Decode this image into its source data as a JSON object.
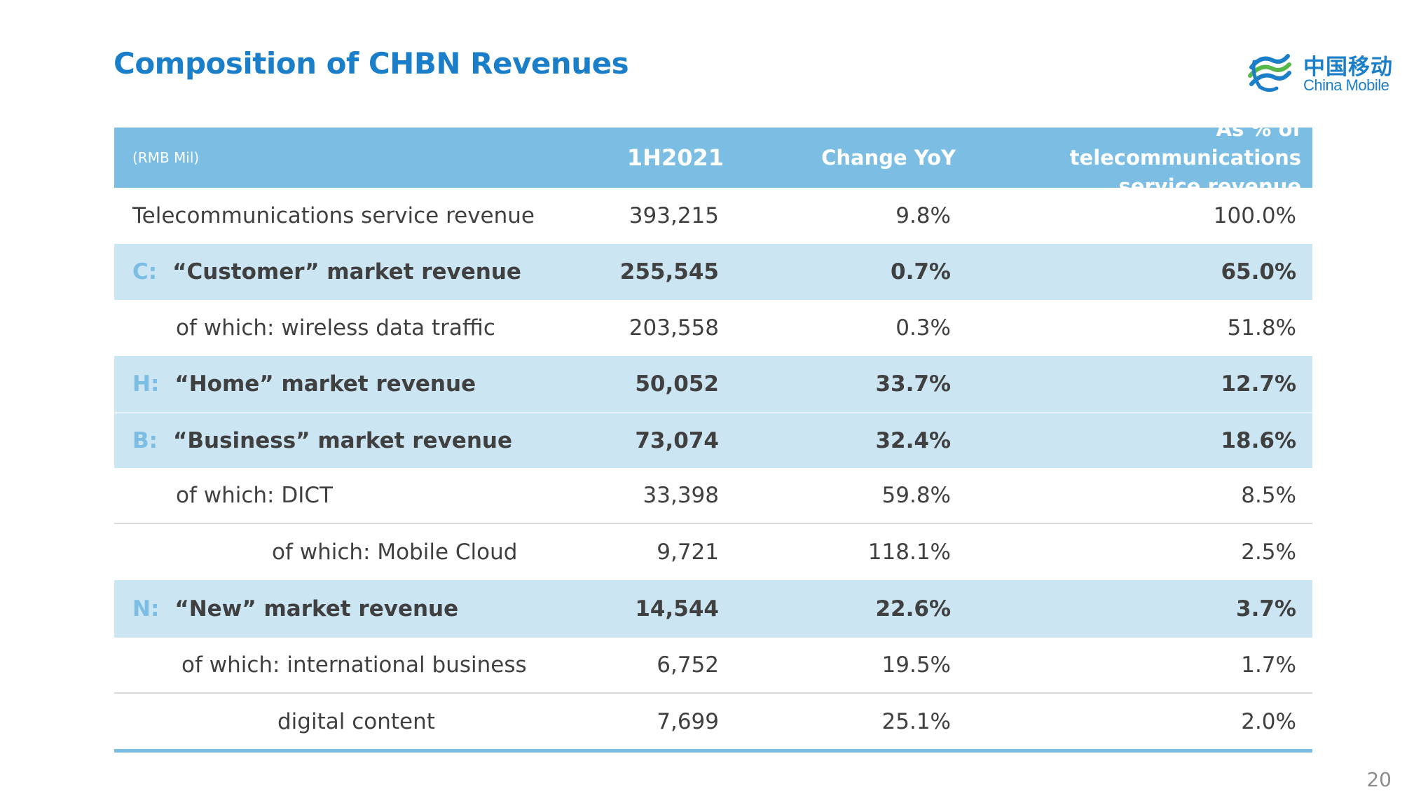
{
  "title": "Composition of CHBN Revenues",
  "logo": {
    "chinese": "中国移动",
    "english": "China Mobile"
  },
  "table": {
    "headers": {
      "unit": "(RMB Mil)",
      "period": "1H2021",
      "change": "Change YoY",
      "share": "As % of telecommunications service revenue"
    },
    "rows": [
      {
        "prefix": "",
        "label": "Telecommunications service revenue",
        "value": "393,215",
        "change": "9.8%",
        "share": "100.0%"
      },
      {
        "prefix": "C:",
        "label": "“Customer” market revenue",
        "value": "255,545",
        "change": "0.7%",
        "share": "65.0%"
      },
      {
        "prefix": "",
        "label": "of which: wireless data traffic",
        "value": "203,558",
        "change": "0.3%",
        "share": "51.8%"
      },
      {
        "prefix": "H:",
        "label": "“Home” market revenue",
        "value": "50,052",
        "change": "33.7%",
        "share": "12.7%"
      },
      {
        "prefix": "B:",
        "label": "“Business” market revenue",
        "value": "73,074",
        "change": "32.4%",
        "share": "18.6%"
      },
      {
        "prefix": "",
        "label": "of which: DICT",
        "value": "33,398",
        "change": "59.8%",
        "share": "8.5%"
      },
      {
        "prefix": "",
        "label": "of which: Mobile Cloud",
        "value": "9,721",
        "change": "118.1%",
        "share": "2.5%"
      },
      {
        "prefix": "N:",
        "label": "“New” market revenue",
        "value": "14,544",
        "change": "22.6%",
        "share": "3.7%"
      },
      {
        "prefix": "",
        "label": "of which: international business",
        "value": "6,752",
        "change": "19.5%",
        "share": "1.7%"
      },
      {
        "prefix": "",
        "label": "digital content",
        "value": "7,699",
        "change": "25.1%",
        "share": "2.0%"
      }
    ]
  },
  "page_number": "20",
  "colors": {
    "title": "#1b7ec8",
    "header_bg": "#7bbde3",
    "highlight_bg": "#cce5f3",
    "text": "#404040"
  }
}
